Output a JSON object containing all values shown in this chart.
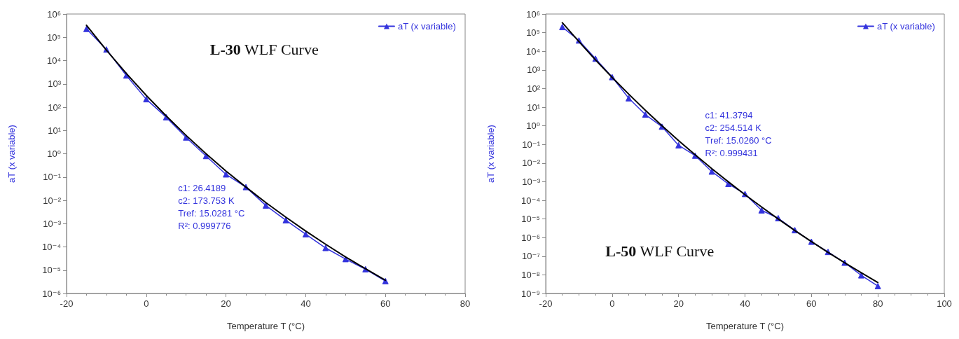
{
  "chart_data": [
    {
      "type": "line",
      "xlabel": "Temperature T (°C)",
      "ylabel": "aT (x variable)",
      "log": "y",
      "legend": "top right",
      "xlim": [
        -20,
        80
      ],
      "xticks": [
        -20,
        0,
        20,
        40,
        60,
        80
      ],
      "ylim": [
        1e-06,
        1000000.0
      ],
      "yticks": [
        {
          "value": 1e-06,
          "label": "10⁻⁶"
        },
        {
          "value": 1e-05,
          "label": "10⁻⁵"
        },
        {
          "value": 0.0001,
          "label": "10⁻⁴"
        },
        {
          "value": 0.001,
          "label": "10⁻³"
        },
        {
          "value": 0.01,
          "label": "10⁻²"
        },
        {
          "value": 0.1,
          "label": "10⁻¹"
        },
        {
          "value": 1,
          "label": "10⁰"
        },
        {
          "value": 10,
          "label": "10¹"
        },
        {
          "value": 100,
          "label": "10²"
        },
        {
          "value": 1000,
          "label": "10³"
        },
        {
          "value": 10000,
          "label": "10⁴"
        },
        {
          "value": 100000,
          "label": "10⁵"
        },
        {
          "value": 1000000,
          "label": "10⁶"
        }
      ],
      "annotations": [
        "L-30 WLF Curve",
        "c1: 26.4189\nc2: 173.753 K\nTref: 15.0281 °C\nR²: 0.999776"
      ],
      "series": [
        {
          "name": "aT (x variable)",
          "color": "#3333dd",
          "marker": "triangle",
          "x": [
            -15,
            -10,
            -5,
            0,
            5,
            10,
            15,
            20,
            25,
            30,
            35,
            40,
            45,
            50,
            55,
            60
          ],
          "values": [
            230000,
            30000,
            2300,
            220,
            37,
            5,
            0.8,
            0.13,
            0.037,
            0.006,
            0.0014,
            0.00035,
            9e-05,
            3e-05,
            1.1e-05,
            3.4e-06
          ]
        },
        {
          "color": "#000000",
          "marker": "none",
          "x": [
            -15,
            -10,
            -5,
            0,
            5,
            10,
            15,
            20,
            25,
            30,
            35,
            40,
            45,
            50,
            55,
            60
          ],
          "values": [
            330000,
            28000,
            2800,
            318,
            42,
            6.1,
            1.0,
            0.18,
            0.037,
            0.008,
            0.0019,
            0.00048,
            0.00013,
            3.7e-05,
            1.15e-05,
            3.7e-06
          ]
        }
      ]
    },
    {
      "type": "line",
      "xlabel": "Temperature T (°C)",
      "ylabel": "aT (x variable)",
      "log": "y",
      "legend": "top right",
      "xlim": [
        -20,
        100
      ],
      "xticks": [
        -20,
        0,
        20,
        40,
        60,
        80,
        100
      ],
      "ylim": [
        1e-09,
        1000000.0
      ],
      "yticks": [
        {
          "value": 1e-09,
          "label": "10⁻⁹"
        },
        {
          "value": 1e-08,
          "label": "10⁻⁸"
        },
        {
          "value": 1e-07,
          "label": "10⁻⁷"
        },
        {
          "value": 1e-06,
          "label": "10⁻⁶"
        },
        {
          "value": 1e-05,
          "label": "10⁻⁵"
        },
        {
          "value": 0.0001,
          "label": "10⁻⁴"
        },
        {
          "value": 0.001,
          "label": "10⁻³"
        },
        {
          "value": 0.01,
          "label": "10⁻²"
        },
        {
          "value": 0.1,
          "label": "10⁻¹"
        },
        {
          "value": 1,
          "label": "10⁰"
        },
        {
          "value": 10,
          "label": "10¹"
        },
        {
          "value": 100,
          "label": "10²"
        },
        {
          "value": 1000,
          "label": "10³"
        },
        {
          "value": 10000,
          "label": "10⁴"
        },
        {
          "value": 100000,
          "label": "10⁵"
        },
        {
          "value": 1000000,
          "label": "10⁶"
        }
      ],
      "annotations": [
        "L-50 WLF Curve",
        "c1: 41.3794\nc2: 254.514 K\nTref: 15.0260 °C\nR²: 0.999431"
      ],
      "series": [
        {
          "name": "aT (x variable)",
          "color": "#3333dd",
          "marker": "triangle",
          "x": [
            -15,
            -10,
            -5,
            0,
            5,
            10,
            15,
            20,
            25,
            30,
            35,
            40,
            45,
            50,
            55,
            60,
            65,
            70,
            75,
            80
          ],
          "values": [
            200000,
            38000,
            4000,
            410,
            30,
            4,
            0.9,
            0.09,
            0.025,
            0.0035,
            0.00076,
            0.00022,
            2.9e-05,
            1.1e-05,
            2.5e-06,
            6e-07,
            1.7e-07,
            4.5e-08,
            9.4e-09,
            2.5e-09
          ]
        },
        {
          "color": "#000000",
          "marker": "none",
          "x": [
            -15,
            -10,
            -5,
            0,
            5,
            10,
            15,
            20,
            25,
            30,
            35,
            40,
            45,
            50,
            55,
            60,
            65,
            70,
            75,
            80
          ],
          "values": [
            340000,
            33000,
            3400,
            395,
            50,
            6.8,
            1.0,
            0.16,
            0.028,
            0.005,
            0.00098,
            0.0002,
            4.4e-05,
            1e-05,
            2.4e-06,
            6.1e-07,
            1.6e-07,
            4.5e-08,
            1.3e-08,
            3.9e-09
          ]
        }
      ]
    }
  ]
}
